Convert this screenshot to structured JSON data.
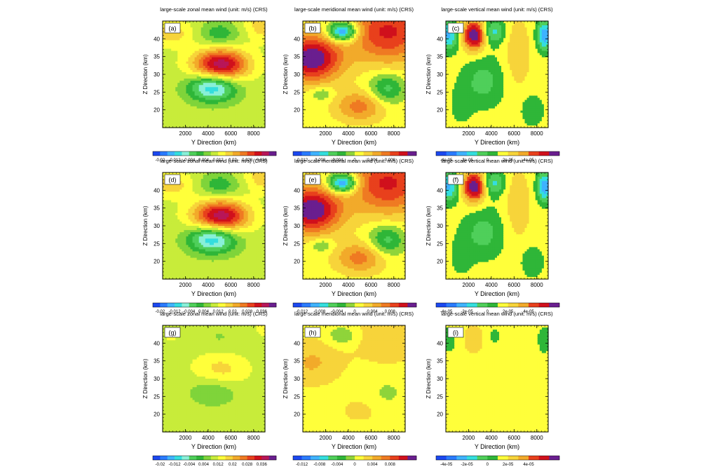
{
  "chart_data": {
    "type": "heatmap",
    "layout": "3x3 grid of filled contour panels",
    "columns": [
      {
        "title": "large-scale zonal mean wind (unit: m/s) (CRS)",
        "colorbar": {
          "colors": [
            "#1b48f0",
            "#2a7bff",
            "#3fb3ff",
            "#34dede",
            "#88f0d8",
            "#4fcf5a",
            "#2fb638",
            "#7fd43a",
            "#c8ec3a",
            "#ffff3a",
            "#f7d43a",
            "#f2aa2a",
            "#ef7a22",
            "#e8401c",
            "#d0101c",
            "#b81658",
            "#6a1e8f"
          ],
          "tick_labels": [
            "-0.02",
            "-0.012",
            "-0.004",
            "0.004",
            "0.012",
            "0.02",
            "0.028",
            "0.036"
          ],
          "tick_index": [
            1,
            3,
            5,
            7,
            9,
            11,
            13,
            15
          ]
        }
      },
      {
        "title": "large-scale meridional mean wind (unit: m/s) (CRS)",
        "colorbar": {
          "colors": [
            "#1b48f0",
            "#2a7bff",
            "#3fb3ff",
            "#34dede",
            "#4fcf5a",
            "#2fb638",
            "#8fd43a",
            "#ffff3a",
            "#f7d43a",
            "#f2aa2a",
            "#ef7a22",
            "#e8401c",
            "#d0101c",
            "#6a1e8f"
          ],
          "tick_labels": [
            "-0.012",
            "-0.008",
            "-0.004",
            "0",
            "0.004",
            "0.008"
          ],
          "tick_index": [
            1,
            3,
            5,
            7,
            9,
            11
          ]
        }
      },
      {
        "title": "large-scale vertical mean wind (unit: m/s) (CRS)",
        "colorbar": {
          "colors": [
            "#1b48f0",
            "#2a7bff",
            "#3fb3ff",
            "#34dede",
            "#4fcf5a",
            "#2fb638",
            "#ffff3a",
            "#f7d43a",
            "#f2aa2a",
            "#e8401c",
            "#d0101c",
            "#6a1e8f"
          ],
          "tick_labels": [
            "-4e-05",
            "-2e-05",
            "0",
            "2e-05",
            "4e-05"
          ],
          "tick_index": [
            1,
            3,
            5,
            7,
            9
          ]
        }
      }
    ],
    "panel_labels": [
      "(a)",
      "(b)",
      "(c)",
      "(d)",
      "(e)",
      "(f)",
      "(g)",
      "(h)",
      "(i)"
    ],
    "xlabel": "Y Direction (km)",
    "ylabel": "Z Direction (km)",
    "xlim": [
      0,
      9000
    ],
    "ylim": [
      15,
      45
    ],
    "xticks": [
      "2000",
      "4000",
      "6000",
      "8000"
    ],
    "yticks": [
      "20",
      "25",
      "30",
      "35",
      "40"
    ],
    "fields": {
      "zonal": [
        {
          "x": 5100,
          "z": 32.5,
          "sx": 1700,
          "sz": 3.2,
          "amp": 0.043
        },
        {
          "x": 4400,
          "z": 26.5,
          "sx": 1500,
          "sz": 2.9,
          "amp": -0.033
        },
        {
          "x": 5000,
          "z": 41.5,
          "sx": 1200,
          "sz": 2.3,
          "amp": -0.013
        },
        {
          "x": 800,
          "z": 41.5,
          "sx": 1300,
          "sz": 2.5,
          "amp": 0.012
        },
        {
          "x": 9000,
          "z": 44.0,
          "sx": 1200,
          "sz": 3.0,
          "amp": 0.014
        }
      ],
      "meridional": [
        {
          "x": 800,
          "z": 34.5,
          "sx": 1800,
          "sz": 4.5,
          "amp": 0.011
        },
        {
          "x": 7500,
          "z": 42.0,
          "sx": 2400,
          "sz": 6.0,
          "amp": 0.008
        },
        {
          "x": 5000,
          "z": 21.0,
          "sx": 1500,
          "sz": 3.0,
          "amp": 0.005
        },
        {
          "x": 3500,
          "z": 42.0,
          "sx": 900,
          "sz": 2.0,
          "amp": -0.011
        },
        {
          "x": 7400,
          "z": 26.0,
          "sx": 1100,
          "sz": 3.0,
          "amp": -0.005
        },
        {
          "x": 1700,
          "z": 24.5,
          "sx": 700,
          "sz": 1.4,
          "amp": -0.003
        }
      ],
      "vertical": [
        {
          "x": 2500,
          "z": 41.0,
          "sx": 700,
          "sz": 3.0,
          "amp": 5.8e-05
        },
        {
          "x": 200,
          "z": 41.0,
          "sx": 650,
          "sz": 3.0,
          "amp": -4e-05
        },
        {
          "x": 8700,
          "z": 41.0,
          "sx": 500,
          "sz": 3.0,
          "amp": -4.5e-05
        },
        {
          "x": 4200,
          "z": 42.0,
          "sx": 700,
          "sz": 2.5,
          "amp": -3e-05
        },
        {
          "x": 3300,
          "z": 28.0,
          "sx": 1300,
          "sz": 5.0,
          "amp": -2e-05
        },
        {
          "x": 6300,
          "z": 36.0,
          "sx": 800,
          "sz": 7.0,
          "amp": 1.4e-05
        },
        {
          "x": 7600,
          "z": 20.0,
          "sx": 800,
          "sz": 3.5,
          "amp": -1.2e-05
        },
        {
          "x": 1300,
          "z": 21.0,
          "sx": 700,
          "sz": 4.0,
          "amp": -9e-06
        }
      ]
    },
    "row_scale": [
      1.0,
      1.0,
      0.25
    ]
  }
}
